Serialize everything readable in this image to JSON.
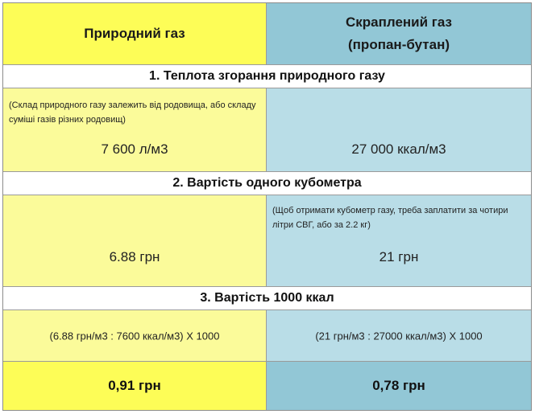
{
  "header": {
    "left": "Природний газ",
    "right_line1": "Скраплений газ",
    "right_line2": "(пропан-бутан)"
  },
  "section1": {
    "title": "1. Теплота згорання природного газу",
    "left_note": "(Склад природного газу залежить від родовища, або складу суміші газів різних родовищ)",
    "left_value": "7 600 л/м3",
    "right_value": "27 000 ккал/м3"
  },
  "section2": {
    "title": "2. Вартість одного кубометра",
    "right_note": "(Щоб отримати кубометр газу, треба заплатити за чотири літри СВГ, або за 2.2 кг)",
    "left_value": "6.88 грн",
    "right_value": "21 грн"
  },
  "section3": {
    "title": "3. Вартість 1000 ккал",
    "left_formula": "(6.88 грн/м3 : 7600 ккал/м3) Х 1000",
    "right_formula": "(21 грн/м3 : 27000 ккал/м3) Х 1000",
    "left_result": "0,91 грн",
    "right_result": "0,78 грн"
  },
  "colors": {
    "yellow_strong": "#fdfd57",
    "yellow_light": "#fbfb9a",
    "blue_strong": "#92c7d6",
    "blue_light": "#b9dde7"
  }
}
